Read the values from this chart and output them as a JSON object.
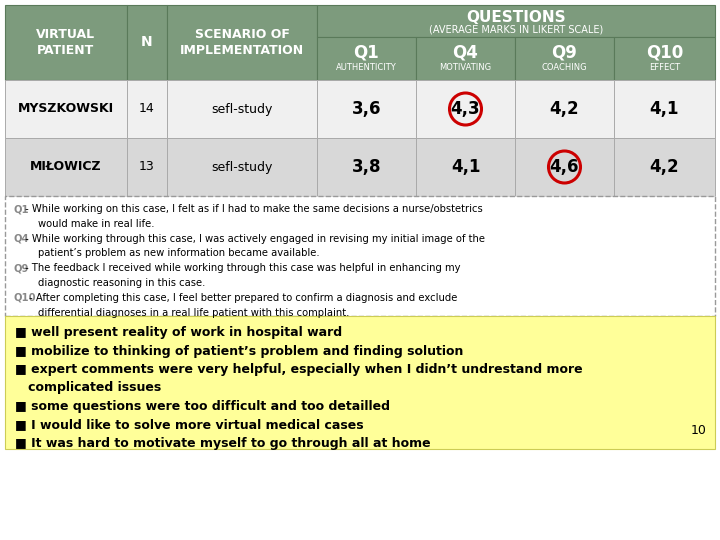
{
  "header_col1": "VIRTUAL\nPATIENT",
  "header_col2": "N",
  "header_col3": "SCENARIO OF\nIMPLEMENTATION",
  "questions_title": "QUESTIONS",
  "questions_subtitle": "(AVERAGE MARKS IN LIKERT SCALE)",
  "q_headers": [
    "Q1",
    "Q4",
    "Q9",
    "Q10"
  ],
  "q_subheaders": [
    "AUTHENTICITY",
    "MOTIVATING",
    "COACHING",
    "EFFECT"
  ],
  "rows": [
    {
      "name": "MYSZKOWSKI",
      "n": "14",
      "scenario": "sefl-study",
      "values": [
        "3,6",
        "4,3",
        "4,2",
        "4,1"
      ],
      "circled": [
        false,
        true,
        false,
        false
      ]
    },
    {
      "name": "MIŁOWICZ",
      "n": "13",
      "scenario": "sefl-study",
      "values": [
        "3,8",
        "4,1",
        "4,6",
        "4,2"
      ],
      "circled": [
        false,
        false,
        true,
        false
      ]
    }
  ],
  "notes_q_labels": [
    "Q1",
    "Q4",
    "Q9",
    "Q10"
  ],
  "notes_texts": [
    " - While working on this case, I felt as if I had to make the same decisions a nurse/obstetrics\n        would make in real life.",
    " - While working through this case, I was actively engaged in revising my initial image of the\n        patient’s problem as new information became available.",
    " - The feedback I received while working through this case was helpful in enhancing my\n        diagnostic reasoning in this case.",
    " - After completing this case, I feel better prepared to confirm a diagnosis and exclude\n        differential diagnoses in a real life patient with this complaint."
  ],
  "bullets": [
    "■ well present reality of work in hospital ward",
    "■ mobilize to thinking of patient’s problem and finding solution",
    "■ expert comments were very helpful, especially when I didn’t undrestand more\n   complicated issues",
    "■ some questions were too difficult and too detailled",
    "■ I would like to solve more virtual medical cases",
    "■ It was hard to motivate myself to go through all at home"
  ],
  "page_num": "10",
  "header_bg": "#7d9b7d",
  "header_text_color": "#ffffff",
  "row1_bg": "#f0f0f0",
  "row2_bg": "#d8d8d8",
  "notes_bg": "#ffffff",
  "bullets_bg": "#ffff99",
  "circle_color": "#cc0000"
}
